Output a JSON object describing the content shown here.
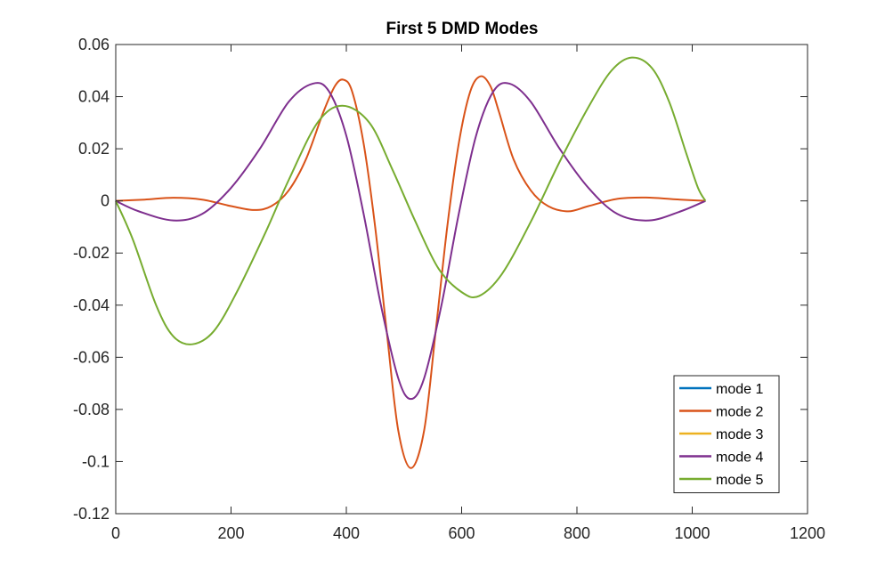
{
  "chart_data": {
    "type": "line",
    "title": "First 5 DMD Modes",
    "xlabel": "",
    "ylabel": "",
    "xlim": [
      0,
      1200
    ],
    "ylim": [
      -0.12,
      0.06
    ],
    "xticks": [
      0,
      200,
      400,
      600,
      800,
      1000,
      1200
    ],
    "xtick_labels": [
      "0",
      "200",
      "400",
      "600",
      "800",
      "1000",
      "1200"
    ],
    "yticks": [
      -0.12,
      -0.1,
      -0.08,
      -0.06,
      -0.04,
      -0.02,
      0,
      0.02,
      0.04,
      0.06
    ],
    "ytick_labels": [
      "-0.12",
      "-0.1",
      "-0.08",
      "-0.06",
      "-0.04",
      "-0.02",
      "0",
      "0.02",
      "0.04",
      "0.06"
    ],
    "grid": false,
    "legend_position": "bottom-right",
    "series": [
      {
        "name": "mode 1",
        "color": "#0072BD",
        "points": []
      },
      {
        "name": "mode 2",
        "color": "#D95319",
        "points": [
          [
            0,
            0
          ],
          [
            50,
            0.0005
          ],
          [
            100,
            0.0012
          ],
          [
            150,
            0.0005
          ],
          [
            200,
            -0.002
          ],
          [
            240,
            -0.0035
          ],
          [
            270,
            -0.002
          ],
          [
            300,
            0.004
          ],
          [
            330,
            0.016
          ],
          [
            360,
            0.034
          ],
          [
            380,
            0.044
          ],
          [
            395,
            0.0465
          ],
          [
            410,
            0.042
          ],
          [
            430,
            0.022
          ],
          [
            450,
            -0.01
          ],
          [
            470,
            -0.05
          ],
          [
            490,
            -0.088
          ],
          [
            512,
            -0.1025
          ],
          [
            535,
            -0.088
          ],
          [
            555,
            -0.05
          ],
          [
            575,
            -0.01
          ],
          [
            595,
            0.022
          ],
          [
            615,
            0.042
          ],
          [
            633,
            0.0478
          ],
          [
            650,
            0.044
          ],
          [
            665,
            0.034
          ],
          [
            690,
            0.016
          ],
          [
            720,
            0.004
          ],
          [
            750,
            -0.002
          ],
          [
            785,
            -0.004
          ],
          [
            820,
            -0.002
          ],
          [
            870,
            0.0008
          ],
          [
            920,
            0.0013
          ],
          [
            970,
            0.0006
          ],
          [
            1023,
            0
          ]
        ]
      },
      {
        "name": "mode 3",
        "color": "#EDB120",
        "points": []
      },
      {
        "name": "mode 4",
        "color": "#7E2F8E",
        "points": [
          [
            0,
            0
          ],
          [
            40,
            -0.004
          ],
          [
            100,
            -0.0075
          ],
          [
            150,
            -0.005
          ],
          [
            200,
            0.005
          ],
          [
            250,
            0.02
          ],
          [
            300,
            0.038
          ],
          [
            342,
            0.045
          ],
          [
            370,
            0.042
          ],
          [
            400,
            0.025
          ],
          [
            430,
            -0.005
          ],
          [
            460,
            -0.04
          ],
          [
            490,
            -0.068
          ],
          [
            512,
            -0.076
          ],
          [
            535,
            -0.068
          ],
          [
            565,
            -0.04
          ],
          [
            595,
            -0.005
          ],
          [
            625,
            0.025
          ],
          [
            655,
            0.042
          ],
          [
            683,
            0.045
          ],
          [
            720,
            0.038
          ],
          [
            770,
            0.02
          ],
          [
            820,
            0.005
          ],
          [
            870,
            -0.005
          ],
          [
            925,
            -0.0075
          ],
          [
            980,
            -0.004
          ],
          [
            1023,
            0
          ]
        ]
      },
      {
        "name": "mode 5",
        "color": "#77AC30",
        "points": [
          [
            0,
            0
          ],
          [
            30,
            -0.015
          ],
          [
            70,
            -0.04
          ],
          [
            100,
            -0.052
          ],
          [
            133,
            -0.055
          ],
          [
            170,
            -0.05
          ],
          [
            210,
            -0.035
          ],
          [
            260,
            -0.012
          ],
          [
            300,
            0.008
          ],
          [
            350,
            0.03
          ],
          [
            393,
            0.0365
          ],
          [
            440,
            0.03
          ],
          [
            480,
            0.012
          ],
          [
            520,
            -0.008
          ],
          [
            560,
            -0.026
          ],
          [
            600,
            -0.035
          ],
          [
            630,
            -0.0365
          ],
          [
            670,
            -0.028
          ],
          [
            720,
            -0.008
          ],
          [
            770,
            0.015
          ],
          [
            820,
            0.036
          ],
          [
            860,
            0.05
          ],
          [
            895,
            0.055
          ],
          [
            930,
            0.051
          ],
          [
            960,
            0.038
          ],
          [
            990,
            0.018
          ],
          [
            1010,
            0.005
          ],
          [
            1023,
            0
          ]
        ]
      }
    ]
  }
}
